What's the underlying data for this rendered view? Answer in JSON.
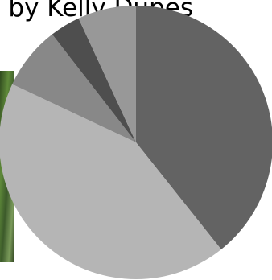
{
  "chart_data": {
    "type": "pie",
    "title": "by Kelly Dupes",
    "values": [
      39.3,
      42.7,
      7.5,
      3.6,
      6.9
    ],
    "colors": [
      "#636363",
      "#b5b5b5",
      "#888888",
      "#4e4e4e",
      "#989898"
    ]
  }
}
